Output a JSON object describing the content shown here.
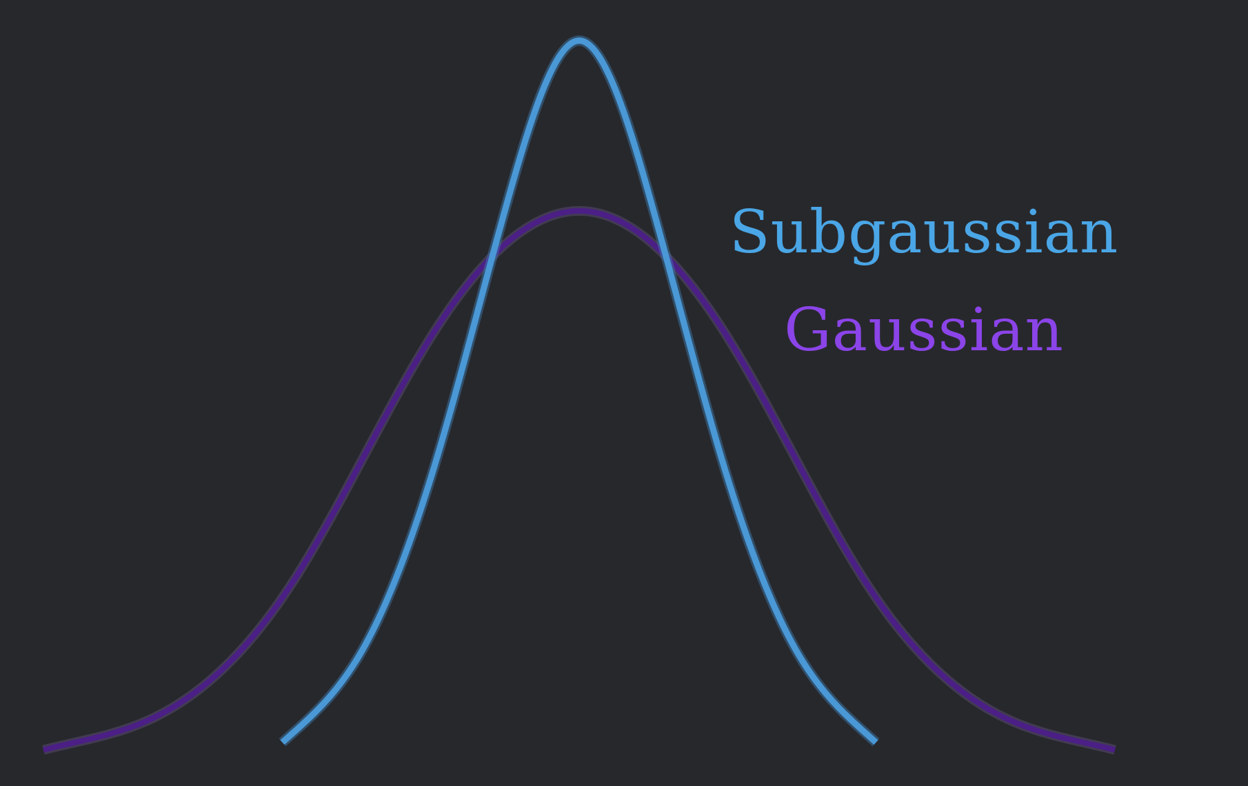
{
  "chart_data": {
    "type": "line",
    "title": "",
    "xlabel": "",
    "ylabel": "",
    "axes_visible": false,
    "grid": false,
    "legend_placement": "right",
    "background_color": "#27282c",
    "x_range": [
      -4,
      4
    ],
    "y_range": [
      0,
      1.03
    ],
    "series": [
      {
        "name": "Subgaussian",
        "color": "#4a98d6",
        "label_color": "#4aa6e6",
        "x_start": -2.05,
        "x_end": 2.05,
        "x": [
          -2.0,
          -1.5,
          -1.0,
          -0.5,
          0.0,
          0.5,
          1.0,
          1.5,
          2.0
        ],
        "y": [
          0.02,
          0.14,
          0.4,
          0.77,
          1.0,
          0.77,
          0.4,
          0.14,
          0.02
        ]
      },
      {
        "name": "Gaussian",
        "color": "#4b1f86",
        "label_color": "#8b44e8",
        "x_start": -3.7,
        "x_end": 3.7,
        "x": [
          -3.5,
          -3.0,
          -2.0,
          -1.0,
          0.0,
          1.0,
          2.0,
          3.0,
          3.5
        ],
        "y": [
          0.01,
          0.04,
          0.23,
          0.59,
          0.76,
          0.59,
          0.23,
          0.04,
          0.01
        ]
      }
    ]
  }
}
